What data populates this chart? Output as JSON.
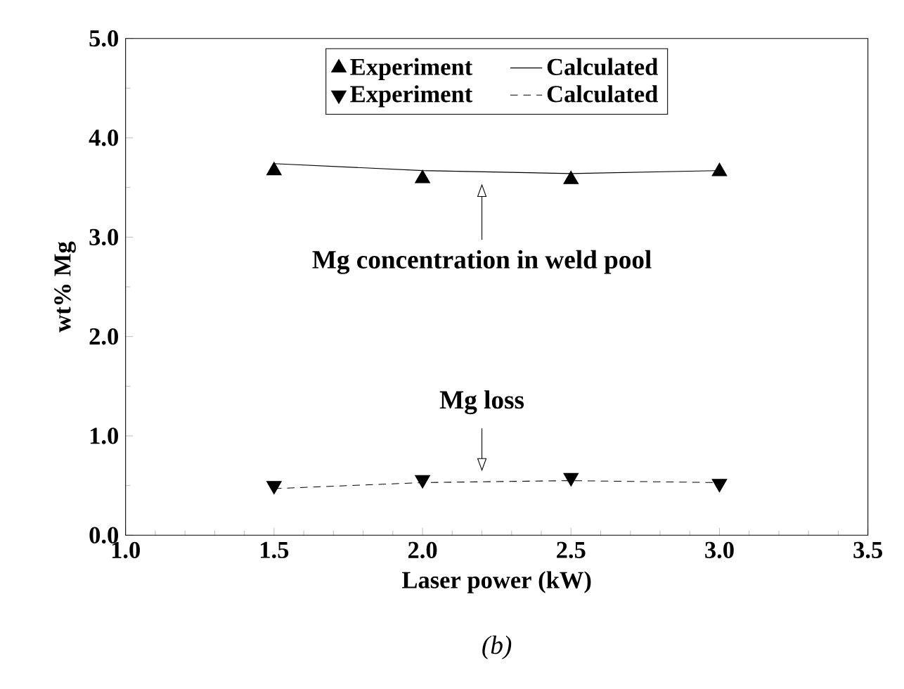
{
  "chart_data": {
    "type": "line",
    "xlabel": "Laser power (kW)",
    "ylabel": "wt% Mg",
    "x": [
      1.5,
      2.0,
      2.5,
      3.0
    ],
    "series": [
      {
        "name": "Experiment",
        "type": "scatter",
        "marker": "triangle",
        "color": "#000000",
        "values": [
          3.67,
          3.59,
          3.58,
          3.66
        ]
      },
      {
        "name": "Experiment",
        "type": "scatter",
        "marker": "triangle-down",
        "color": "#000000",
        "values": [
          0.5,
          0.56,
          0.58,
          0.52
        ]
      },
      {
        "name": "Calculated",
        "line_style": "solid",
        "color": "#000000",
        "values": [
          3.74,
          3.67,
          3.64,
          3.67
        ]
      },
      {
        "name": "Calculated",
        "line_style": "dashed",
        "color": "#000000",
        "values": [
          0.47,
          0.53,
          0.55,
          0.53
        ]
      }
    ],
    "xlim": [
      1.0,
      3.5
    ],
    "ylim": [
      0.0,
      5.0
    ],
    "xticks": [
      {
        "value": 1.0,
        "label": "1.0"
      },
      1.5,
      {
        "value": 2.0,
        "label": "2.0"
      },
      2.5,
      {
        "value": 3.0,
        "label": "3.0"
      },
      3.5
    ],
    "yticks": [
      {
        "value": 0.0,
        "label": "0.0"
      },
      {
        "value": 1.0,
        "label": "1.0"
      },
      {
        "value": 2.0,
        "label": "2.0"
      },
      {
        "value": 3.0,
        "label": "3.0"
      },
      {
        "value": 4.0,
        "label": "4.0"
      },
      {
        "value": 5.0,
        "label": "5.0"
      }
    ],
    "legend": "top",
    "grid": false,
    "annotations": [
      {
        "text": "Mg concentration in weld pool",
        "x": 2.2,
        "y": 3.65
      },
      {
        "text": "Mg loss",
        "x": 2.2,
        "y": 0.55
      },
      "*(b)*"
    ]
  }
}
